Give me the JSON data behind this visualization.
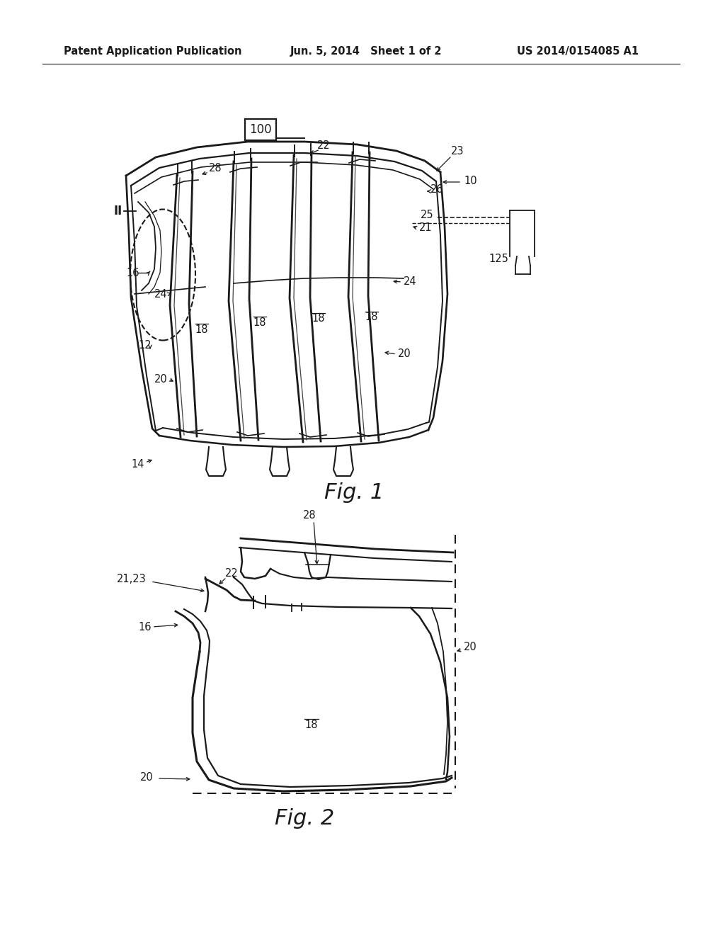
{
  "background_color": "#ffffff",
  "header": {
    "left": "Patent Application Publication",
    "center": "Jun. 5, 2014   Sheet 1 of 2",
    "right": "US 2014/0154085 A1",
    "fontsize": 10.5
  },
  "fig1_caption": "Fig. 1",
  "fig2_caption": "Fig. 2",
  "line_color": "#1a1a1a",
  "label_fontsize": 10.5,
  "caption_fontsize": 22
}
